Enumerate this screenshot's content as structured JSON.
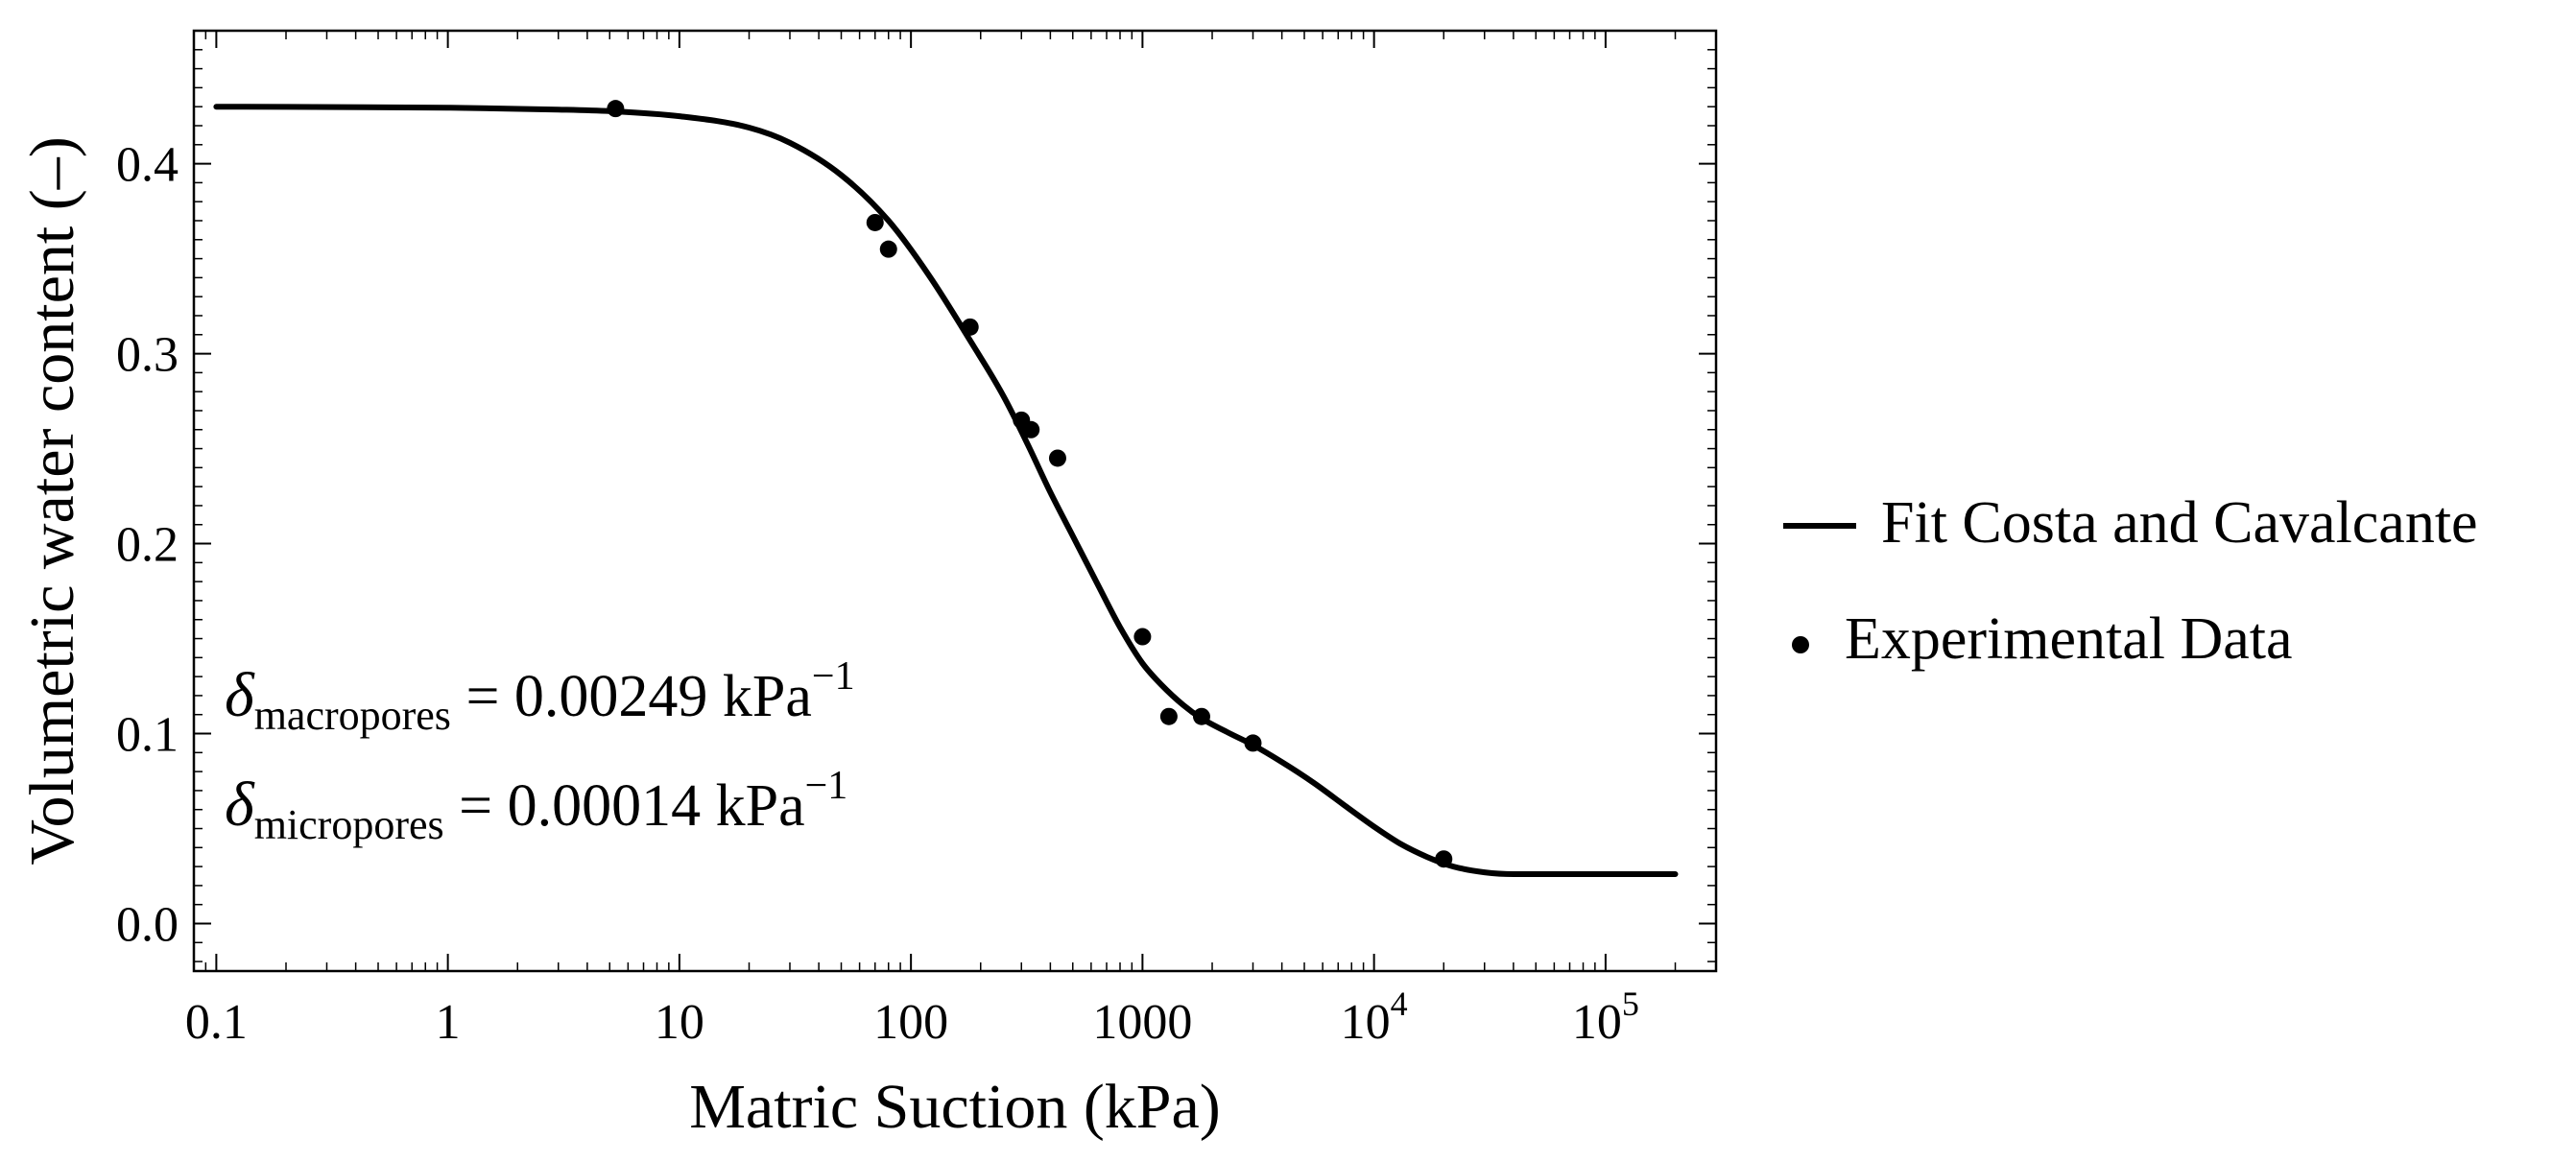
{
  "chart_data": {
    "type": "scatter",
    "xlabel": "Matric Suction (kPa)",
    "ylabel": "Volumetric water content (–)",
    "xscale": "log",
    "xlim": [
      0.08,
      300000
    ],
    "ylim": [
      -0.025,
      0.47
    ],
    "grid": false,
    "legend_position": "right",
    "xticks": [
      {
        "value": 0.1,
        "label": "0.1",
        "base": "",
        "exp": ""
      },
      {
        "value": 1,
        "label": "1",
        "base": "",
        "exp": ""
      },
      {
        "value": 10,
        "label": "10",
        "base": "",
        "exp": ""
      },
      {
        "value": 100,
        "label": "100",
        "base": "",
        "exp": ""
      },
      {
        "value": 1000,
        "label": "1000",
        "base": "",
        "exp": ""
      },
      {
        "value": 10000,
        "label": "",
        "base": "10",
        "exp": "4"
      },
      {
        "value": 100000,
        "label": "",
        "base": "10",
        "exp": "5"
      }
    ],
    "yticks": [
      {
        "value": 0.0,
        "label": "0.0"
      },
      {
        "value": 0.1,
        "label": "0.1"
      },
      {
        "value": 0.2,
        "label": "0.2"
      },
      {
        "value": 0.3,
        "label": "0.3"
      },
      {
        "value": 0.4,
        "label": "0.4"
      }
    ],
    "series": [
      {
        "name": "Fit Costa and Cavalcante",
        "kind": "line",
        "color": "#000000",
        "x": [
          0.1,
          1,
          3,
          5.3,
          10,
          20,
          30,
          50,
          80,
          120,
          180,
          250,
          320,
          400,
          500,
          650,
          800,
          1000,
          1200,
          1500,
          1800,
          2300,
          3000,
          4000,
          5500,
          7500,
          10000,
          13000,
          17000,
          22000,
          30000,
          40000,
          60000,
          100000,
          200000
        ],
        "y": [
          0.43,
          0.4295,
          0.4285,
          0.4275,
          0.425,
          0.419,
          0.411,
          0.394,
          0.37,
          0.341,
          0.307,
          0.278,
          0.252,
          0.227,
          0.204,
          0.177,
          0.156,
          0.137,
          0.126,
          0.115,
          0.108,
          0.101,
          0.094,
          0.085,
          0.074,
          0.062,
          0.051,
          0.042,
          0.035,
          0.03,
          0.027,
          0.026,
          0.026,
          0.026,
          0.026
        ]
      },
      {
        "name": "Experimental Data",
        "kind": "scatter",
        "color": "#000000",
        "x": [
          5.3,
          70,
          80,
          180,
          300,
          330,
          430,
          1000,
          1300,
          1800,
          3000,
          20000
        ],
        "y": [
          0.429,
          0.369,
          0.355,
          0.314,
          0.265,
          0.26,
          0.245,
          0.151,
          0.109,
          0.109,
          0.095,
          0.034
        ]
      }
    ],
    "annotations": [
      {
        "symbol": "δ",
        "subscript": "macropores",
        "text": " = 0.00249 kPa",
        "sup": "−1"
      },
      {
        "symbol": "δ",
        "subscript": "micropores",
        "text": " = 0.00014 kPa",
        "sup": "−1"
      }
    ]
  }
}
